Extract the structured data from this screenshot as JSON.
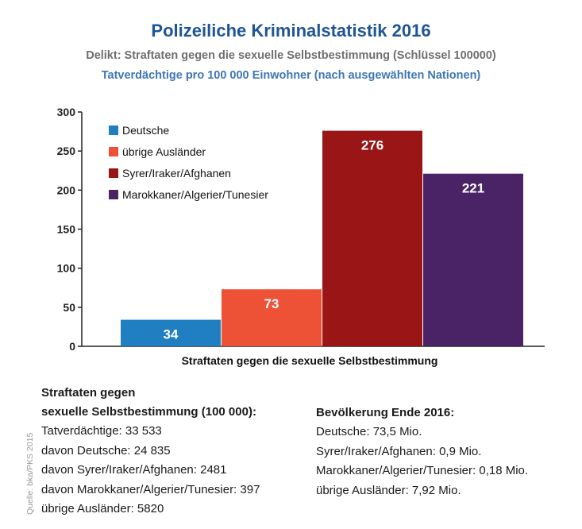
{
  "header": {
    "title": "Polizeiliche Kriminalstatistik 2016",
    "subtitle": "Delikt: Straftaten gegen die sexuelle Selbstbestimmung (Schlüssel 100000)",
    "subtitle2": "Tatverdächtige pro 100 000 Einwohner (nach ausgewählten Nationen)"
  },
  "chart_data": {
    "type": "bar",
    "title": "Polizeiliche Kriminalstatistik 2016",
    "xlabel": "Straftaten gegen die sexuelle Selbstbestimmung",
    "ylabel": "",
    "ylim": [
      0,
      300
    ],
    "yticks": [
      0,
      50,
      100,
      150,
      200,
      250,
      300
    ],
    "grid": false,
    "legend_position": "top-left",
    "series": [
      {
        "name": "Deutsche",
        "value": 34,
        "label": "34",
        "color": "#1f7fc0"
      },
      {
        "name": "übrige Ausländer",
        "value": 73,
        "label": "73",
        "color": "#ee5236"
      },
      {
        "name": "Syrer/Iraker/Afghanen",
        "value": 276,
        "label": "276",
        "color": "#9a1515"
      },
      {
        "name": "Marokkaner/Algerier/Tunesier",
        "value": 221,
        "label": "221",
        "color": "#4a2366"
      }
    ]
  },
  "stats_left": {
    "heading_line1": "Straftaten gegen",
    "heading_line2": "sexuelle Selbstbestimmung (100 000):",
    "lines": [
      "Tatverdächtige: 33 533",
      "davon Deutsche: 24 835",
      "davon Syrer/Iraker/Afghanen: 2481",
      "davon Marokkaner/Algerier/Tunesier: 397",
      "übrige Ausländer: 5820"
    ]
  },
  "stats_right": {
    "heading": "Bevölkerung Ende 2016:",
    "lines": [
      "Deutsche: 73,5 Mio.",
      "Syrer/Iraker/Afghanen: 0,9 Mio.",
      "Marokkaner/Algerier/Tunesier: 0,18 Mio.",
      "übrige Ausländer: 7,92 Mio."
    ]
  },
  "source": "Quelle: bka/PKS 2015"
}
